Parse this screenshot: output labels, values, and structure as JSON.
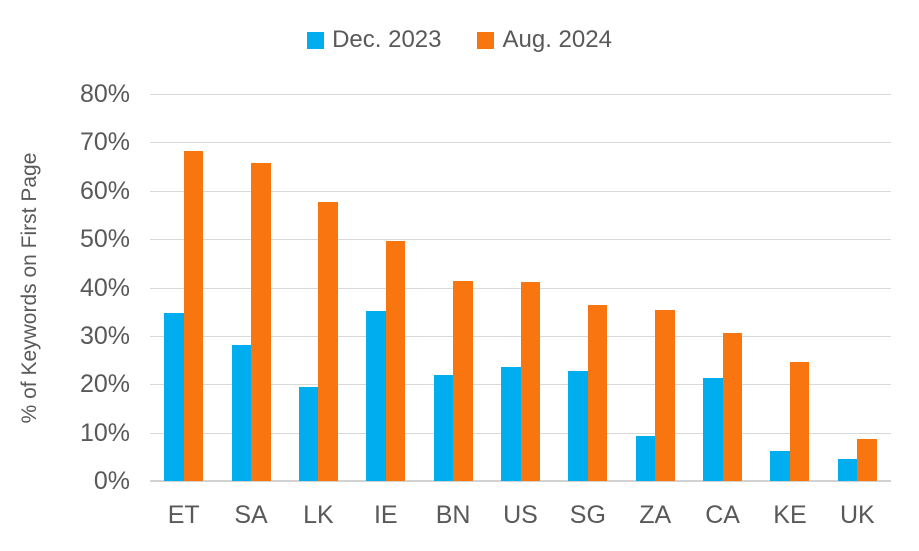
{
  "chart_data": {
    "type": "bar",
    "title": "",
    "xlabel": "",
    "ylabel": "% of Keywords on First Page",
    "ylim": [
      0,
      80
    ],
    "ytick_step": 10,
    "yticks": [
      "80%",
      "70%",
      "60%",
      "50%",
      "40%",
      "30%",
      "20%",
      "10%",
      "0%"
    ],
    "grid": true,
    "legend_position": "top-center",
    "categories": [
      "ET",
      "SA",
      "LK",
      "IE",
      "BN",
      "US",
      "SG",
      "ZA",
      "CA",
      "KE",
      "UK"
    ],
    "series": [
      {
        "name": "Dec. 2023",
        "color": "#00aeef",
        "values": [
          34.7,
          28.2,
          19.4,
          35.2,
          21.9,
          23.5,
          22.7,
          9.3,
          21.2,
          6.2,
          4.5
        ]
      },
      {
        "name": "Aug. 2024",
        "color": "#f9750f",
        "values": [
          68.2,
          65.7,
          57.7,
          49.6,
          41.4,
          41.2,
          36.3,
          35.3,
          30.6,
          24.7,
          8.7
        ]
      }
    ],
    "colors": {
      "gridline": "#d9d9d9",
      "axis": "#d2d2d2",
      "text": "#595959"
    }
  }
}
